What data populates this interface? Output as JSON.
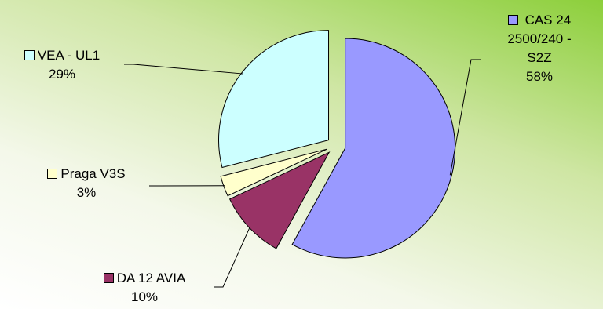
{
  "chart_data": {
    "type": "pie",
    "title": "",
    "exploded": true,
    "slices": [
      {
        "name": "CAS 24 2500/240 - S2Z",
        "label_lines": [
          "CAS 24",
          "2500/240 -",
          "S2Z"
        ],
        "value": 58,
        "value_label": "58%",
        "color": "#9999FF"
      },
      {
        "name": "DA 12 AVIA",
        "label_lines": [
          "DA 12 AVIA"
        ],
        "value": 10,
        "value_label": "10%",
        "color": "#993366"
      },
      {
        "name": "Praga V3S",
        "label_lines": [
          "Praga V3S"
        ],
        "value": 3,
        "value_label": "3%",
        "color": "#FFFFCC"
      },
      {
        "name": "VEA - UL1",
        "label_lines": [
          "VEA - UL1"
        ],
        "value": 29,
        "value_label": "29%",
        "color": "#CCFFFF"
      }
    ]
  }
}
